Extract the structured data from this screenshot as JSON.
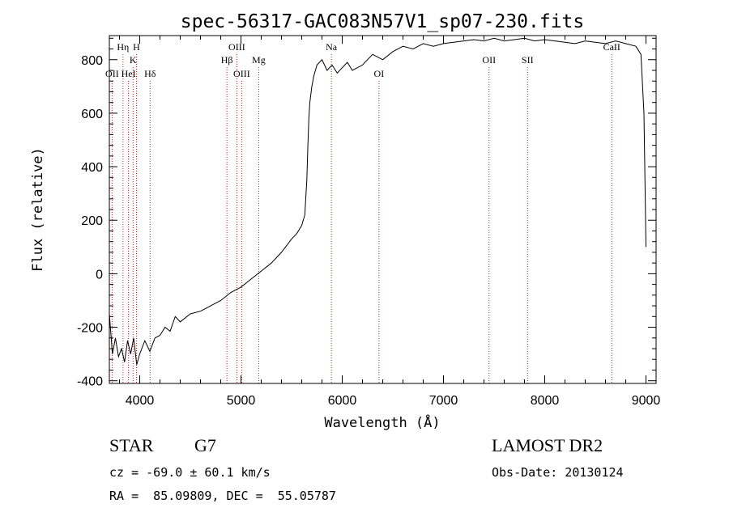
{
  "chart_data": {
    "type": "line",
    "title": "spec-56317-GAC083N57V1_sp07-230.fits",
    "xlabel": "Wavelength (Å)",
    "ylabel": "Flux (relative)",
    "xlim": [
      3700,
      9100
    ],
    "ylim": [
      -410,
      890
    ],
    "xticks": [
      4000,
      5000,
      6000,
      7000,
      8000,
      9000
    ],
    "yticks": [
      -400,
      -200,
      0,
      200,
      400,
      600,
      800
    ],
    "grid": false,
    "series": [
      {
        "x": [
          3700,
          3730,
          3760,
          3790,
          3820,
          3850,
          3880,
          3910,
          3940,
          3970,
          4000,
          4050,
          4100,
          4150,
          4200,
          4250,
          4300,
          4350,
          4400,
          4500,
          4600,
          4700,
          4800,
          4900,
          5000,
          5100,
          5200,
          5300,
          5400,
          5500,
          5550,
          5600,
          5630,
          5650,
          5660,
          5670,
          5680,
          5700,
          5720,
          5750,
          5800,
          5850,
          5900,
          5950,
          6000,
          6050,
          6100,
          6200,
          6300,
          6400,
          6500,
          6600,
          6700,
          6800,
          6900,
          7000,
          7100,
          7200,
          7300,
          7400,
          7500,
          7600,
          7700,
          7800,
          7900,
          8000,
          8100,
          8200,
          8300,
          8400,
          8500,
          8600,
          8700,
          8800,
          8900,
          8950,
          8980,
          9000
        ],
        "y": [
          -150,
          -300,
          -240,
          -310,
          -280,
          -330,
          -250,
          -300,
          -240,
          -340,
          -300,
          -250,
          -290,
          -240,
          -230,
          -200,
          -215,
          -160,
          -180,
          -150,
          -140,
          -120,
          -100,
          -70,
          -50,
          -20,
          10,
          40,
          80,
          130,
          150,
          180,
          220,
          350,
          470,
          580,
          640,
          700,
          740,
          780,
          800,
          760,
          780,
          750,
          770,
          790,
          760,
          780,
          820,
          800,
          830,
          850,
          840,
          860,
          850,
          860,
          865,
          870,
          875,
          870,
          880,
          870,
          875,
          880,
          870,
          875,
          870,
          865,
          860,
          870,
          865,
          860,
          870,
          860,
          850,
          820,
          600,
          100
        ]
      }
    ],
    "lines": [
      {
        "label": "OII",
        "x": 3727,
        "row": 3
      },
      {
        "label": "Hη",
        "x": 3835,
        "row": 1
      },
      {
        "label": "HeI",
        "x": 3889,
        "row": 3
      },
      {
        "label": "K",
        "x": 3934,
        "row": 2
      },
      {
        "label": "H",
        "x": 3968,
        "row": 1
      },
      {
        "label": "Hδ",
        "x": 4102,
        "row": 3
      },
      {
        "label": "Hβ",
        "x": 4861,
        "row": 2
      },
      {
        "label": "OIII",
        "x": 4959,
        "row": 1
      },
      {
        "label": "OIII",
        "x": 5007,
        "row": 3
      },
      {
        "label": "Mg",
        "x": 5175,
        "row": 2
      },
      {
        "label": "Na",
        "x": 5893,
        "row": 1
      },
      {
        "label": "OI",
        "x": 6363,
        "row": 3
      },
      {
        "label": "OII",
        "x": 7450,
        "row": 2
      },
      {
        "label": "SII",
        "x": 7830,
        "row": 2
      },
      {
        "label": "CaII",
        "x": 8662,
        "row": 1
      }
    ]
  },
  "info": {
    "obj_class": "STAR",
    "subclass": "G7",
    "survey": "LAMOST DR2",
    "cz": "cz = -69.0 ± 60.1 km/s",
    "obs_date": "Obs-Date: 20130124",
    "coords": "RA =  85.09809, DEC =  55.05787"
  }
}
